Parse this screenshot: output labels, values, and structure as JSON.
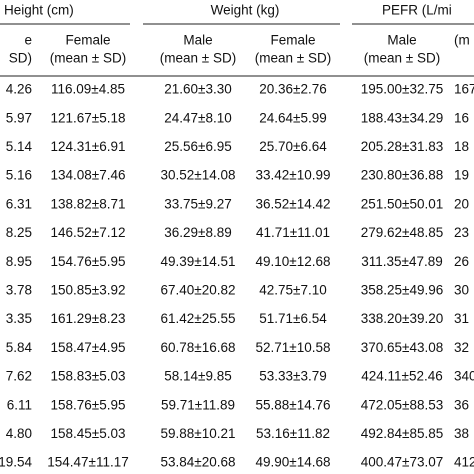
{
  "table": {
    "groups": [
      "Height (cm)",
      "Weight (kg)",
      "PEFR (L/mi"
    ],
    "subheaders": [
      [
        "e",
        "SD)"
      ],
      [
        "Female",
        "(mean ± SD)"
      ],
      [
        "Male",
        "(mean ± SD)"
      ],
      [
        "Female",
        "(mean ± SD)"
      ],
      [
        "Male",
        "(mean ± SD)"
      ],
      [
        "(m",
        ""
      ]
    ],
    "rows": [
      [
        "4.26",
        "116.09±4.85",
        "21.60±3.30",
        "20.36±2.76",
        "195.00±32.75",
        "167"
      ],
      [
        "5.97",
        "121.67±5.18",
        "24.47±8.10",
        "24.64±5.99",
        "188.43±34.29",
        "16"
      ],
      [
        "5.14",
        "124.31±6.91",
        "25.56±6.95",
        "25.70±6.64",
        "205.28±31.83",
        "18"
      ],
      [
        "5.16",
        "134.08±7.46",
        "30.52±14.08",
        "33.42±10.99",
        "230.80±36.88",
        "19"
      ],
      [
        "6.31",
        "138.82±8.71",
        "33.75±9.27",
        "36.52±14.42",
        "251.50±50.01",
        "20"
      ],
      [
        "8.25",
        "146.52±7.12",
        "36.29±8.89",
        "41.71±11.01",
        "279.62±48.85",
        "23"
      ],
      [
        "8.95",
        "154.76±5.95",
        "49.39±14.51",
        "49.10±12.68",
        "311.35±47.89",
        "26"
      ],
      [
        "3.78",
        "150.85±3.92",
        "67.40±20.82",
        "42.75±7.10",
        "358.25±49.96",
        "30"
      ],
      [
        "3.35",
        "161.29±8.23",
        "61.42±25.55",
        "51.71±6.54",
        "338.20±39.20",
        "31"
      ],
      [
        "5.84",
        "158.47±4.95",
        "60.78±16.68",
        "52.71±10.58",
        "370.65±43.08",
        "32"
      ],
      [
        "7.62",
        "158.83±5.03",
        "58.14±9.85",
        "53.33±3.79",
        "424.11±52.46",
        "340."
      ],
      [
        "6.11",
        "158.76±5.95",
        "59.71±11.89",
        "55.88±14.76",
        "472.05±88.53",
        "36"
      ],
      [
        "4.80",
        "158.45±5.03",
        "59.88±10.21",
        "53.16±11.82",
        "492.84±85.85",
        "38"
      ],
      [
        "19.54",
        "154.47±11.17",
        "53.84±20.68",
        "49.90±14.68",
        "400.47±73.07",
        "412"
      ]
    ]
  }
}
